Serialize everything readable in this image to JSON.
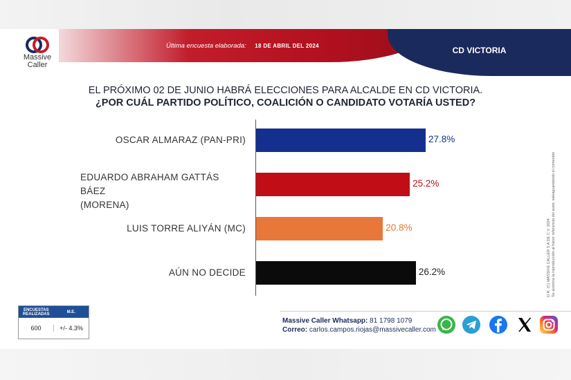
{
  "header": {
    "survey_label": "Última encuesta elaborada:",
    "survey_date": "18 DE ABRIL DEL 2024",
    "city": "CD VICTORIA",
    "logo_line1": "Massive",
    "logo_line2": "Caller"
  },
  "question": {
    "line1": "EL PRÓXIMO 02 DE JUNIO HABRÁ ELECCIONES PARA ALCALDE EN CD VICTORIA.",
    "line2": "¿POR CUÁL PARTIDO POLÍTICO, COALICIÓN O CANDIDATO VOTARÍA USTED?"
  },
  "side_note": {
    "line1": "D.R. (C) MASSIVE CALLER S.A DE C.V. 2024",
    "line2": "Se autoriza la reproducción al hacer referencia del autor, salvaguardando el contenido"
  },
  "chart_data": {
    "type": "bar",
    "orientation": "horizontal",
    "categories": [
      [
        "OSCAR ALMARAZ (PAN-PRI)"
      ],
      [
        "EDUARDO ABRAHAM GATTÁS BÁEZ",
        "(MORENA)"
      ],
      [
        "LUIS TORRE ALIYÁN (MC)"
      ],
      [
        "AÚN NO DECIDE"
      ]
    ],
    "values": [
      27.8,
      25.2,
      20.8,
      26.2
    ],
    "value_labels": [
      "27.8%",
      "25.2%",
      "20.8%",
      "26.2%"
    ],
    "colors": [
      "#14308f",
      "#c10d16",
      "#e8773a",
      "#0b0b0b"
    ],
    "xlim": [
      0,
      40
    ]
  },
  "stats": {
    "col1_header": "ENCUESTAS REALIZADAS",
    "col2_header": "M.E.",
    "sample": "600",
    "margin": "+/- 4.3%"
  },
  "contact": {
    "whatsapp_label": "Massive Caller Whatsapp:",
    "whatsapp_number": "81 1798 1079",
    "email_label": "Correo:",
    "email": "carlos.campos.riojas@massivecaller.com"
  },
  "social": [
    "whatsapp-icon",
    "telegram-icon",
    "facebook-icon",
    "x-icon",
    "instagram-icon"
  ]
}
